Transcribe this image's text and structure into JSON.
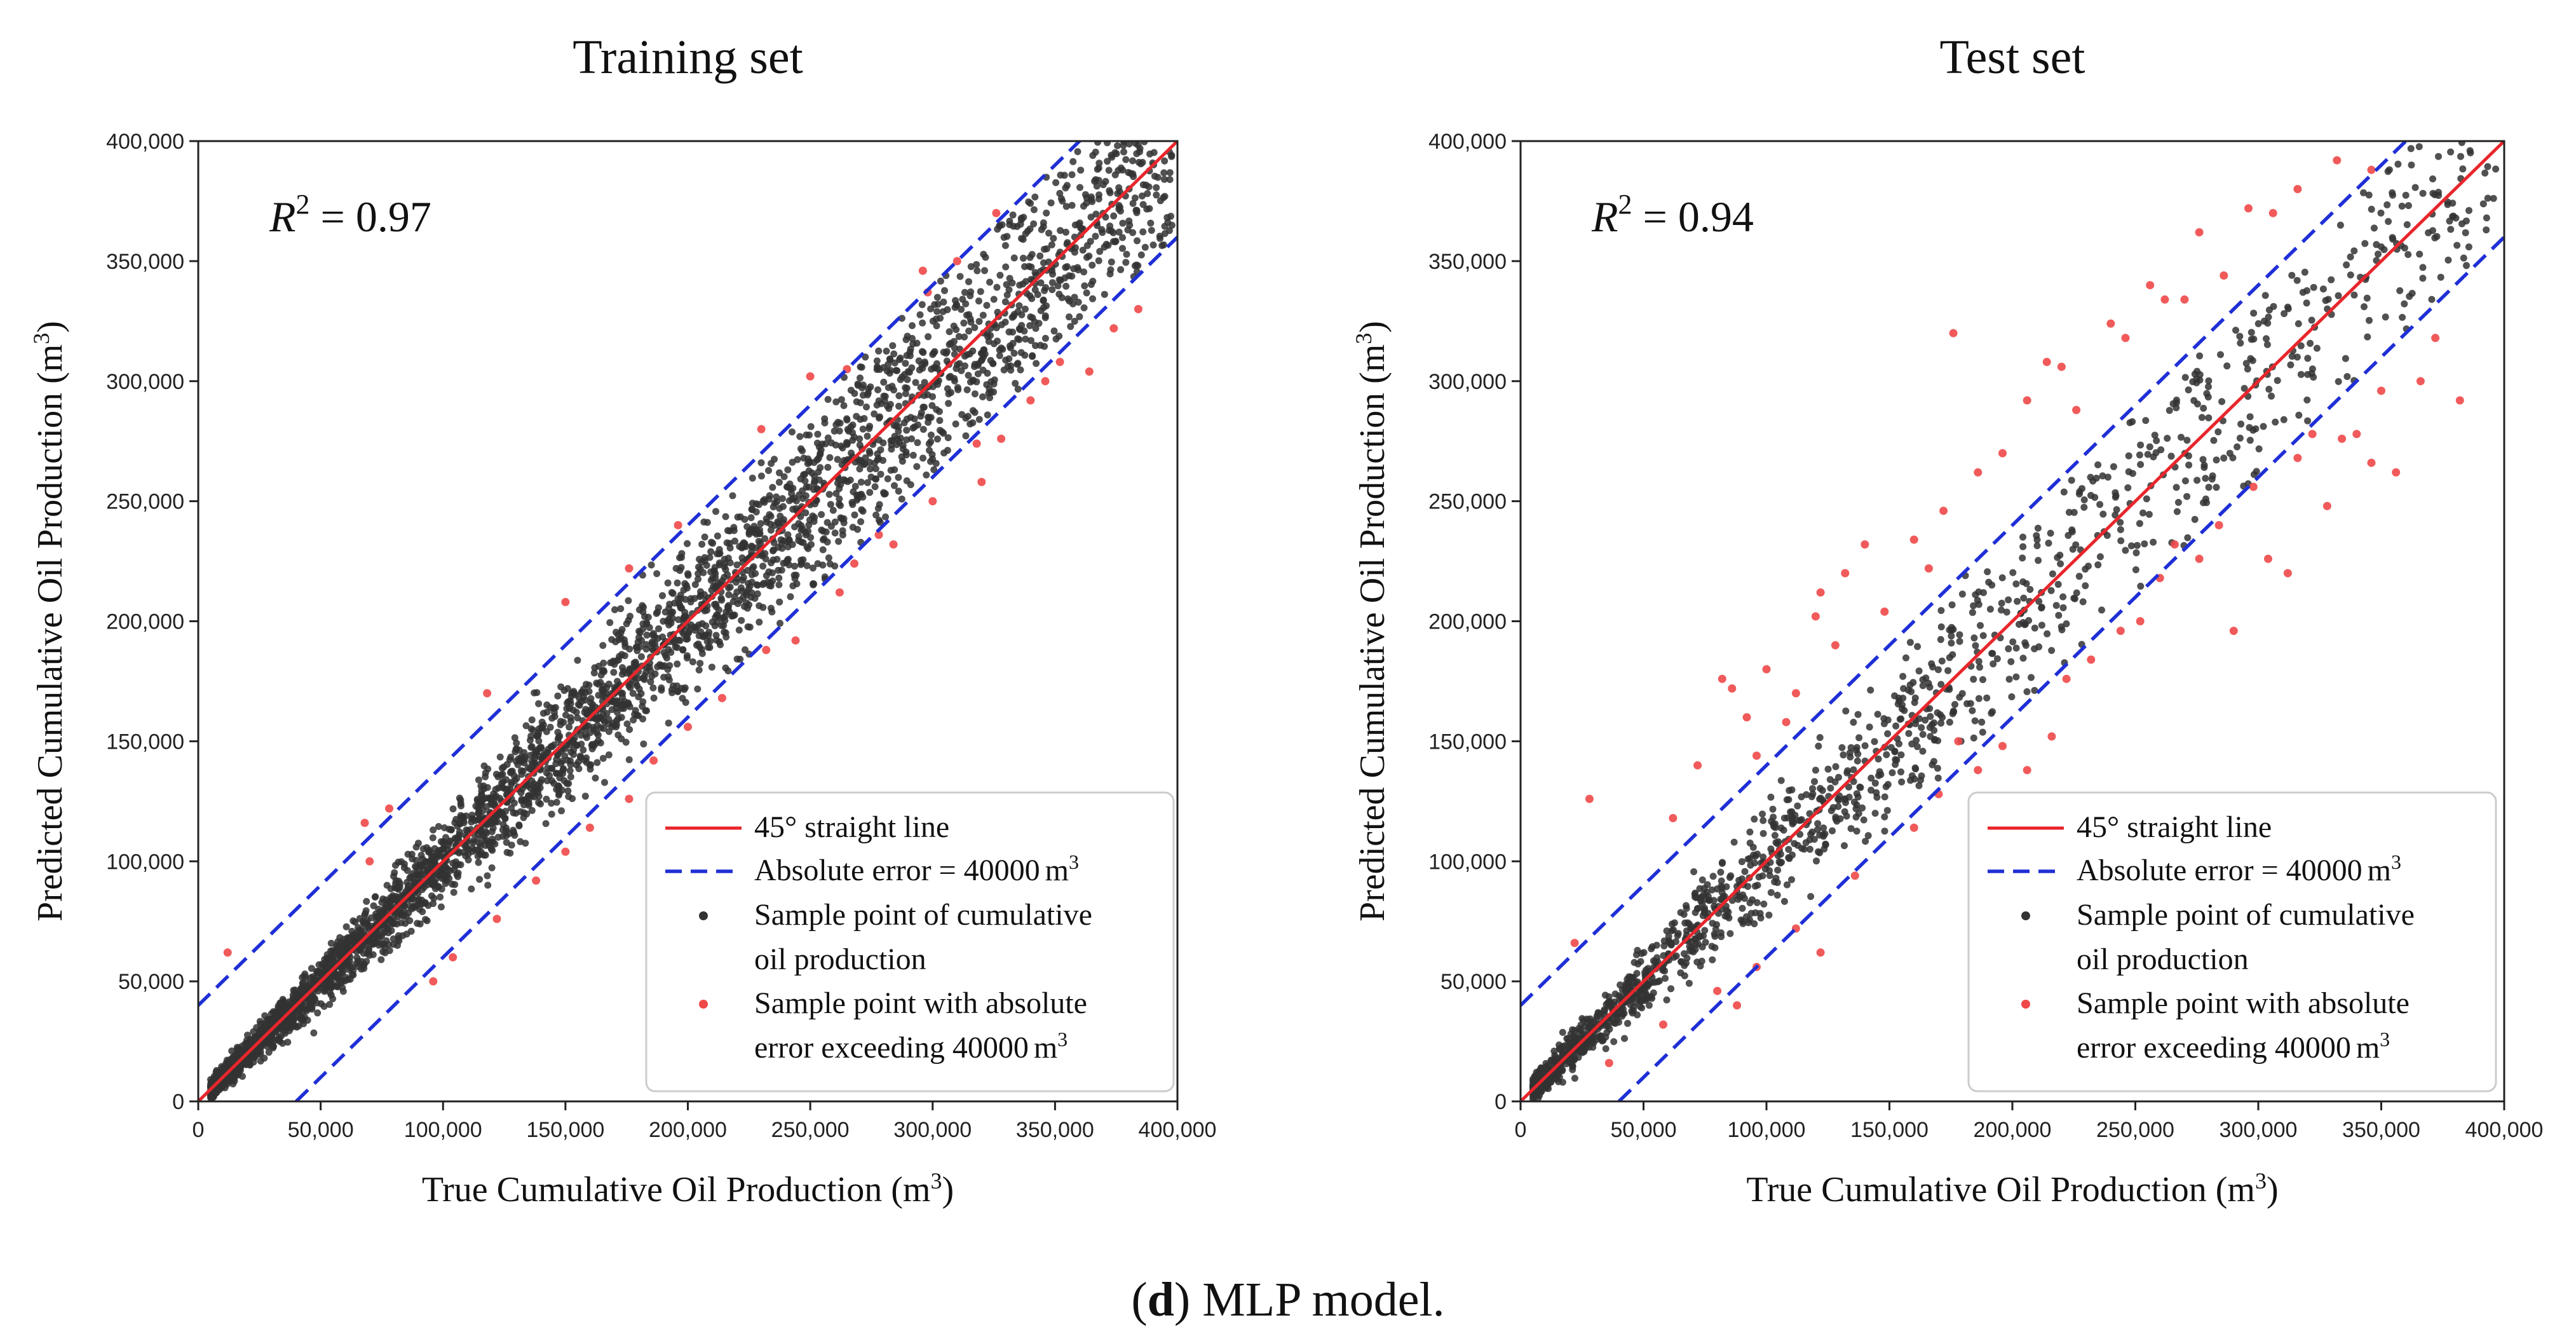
{
  "caption": {
    "letter": "d",
    "open": "(",
    "close": ")",
    "text": " MLP model."
  },
  "chart_data": [
    {
      "type": "scatter",
      "title": "Training set",
      "xlabel": "True Cumulative Oil Production",
      "ylabel": "Predicted Cumulative Oil Production",
      "unit_base": "m",
      "unit_exp": "3",
      "xlim": [
        0,
        400000
      ],
      "ylim": [
        0,
        400000
      ],
      "xticks": [
        "0",
        "50,000",
        "100,000",
        "150,000",
        "200,000",
        "250,000",
        "300,000",
        "350,000",
        "400,000"
      ],
      "yticks": [
        "0",
        "50,000",
        "100,000",
        "150,000",
        "200,000",
        "250,000",
        "300,000",
        "350,000",
        "400,000"
      ],
      "r2_label": "R",
      "r2_exp": "2",
      "r2_text": " = 0.97",
      "r2": 0.97,
      "error_band": 40000,
      "legend": [
        {
          "label": "45° straight line",
          "kind": "line",
          "color": "#e8262b"
        },
        {
          "label": "Absolute error = 40000",
          "unit_base": "m",
          "unit_exp": "3",
          "kind": "dash",
          "color": "#1f2fd6"
        },
        {
          "label": "Sample point of cumulative",
          "label2": "oil production",
          "kind": "dot",
          "color": "#333333"
        },
        {
          "label": "Sample point with absolute",
          "label2": "error exceeding  40000",
          "unit_base": "m",
          "unit_exp": "3",
          "kind": "dot",
          "color": "#f04848"
        }
      ],
      "series_black_count": 3600,
      "series_red_points": [
        [
          12000,
          62000
        ],
        [
          68000,
          116000
        ],
        [
          70000,
          100000
        ],
        [
          78000,
          122000
        ],
        [
          118000,
          170000
        ],
        [
          150000,
          208000
        ],
        [
          176000,
          222000
        ],
        [
          196000,
          240000
        ],
        [
          230000,
          280000
        ],
        [
          250000,
          302000
        ],
        [
          265000,
          305000
        ],
        [
          296000,
          346000
        ],
        [
          298000,
          337000
        ],
        [
          310000,
          350000
        ],
        [
          326000,
          370000
        ],
        [
          360000,
          402000
        ],
        [
          96000,
          50000
        ],
        [
          104000,
          60000
        ],
        [
          122000,
          76000
        ],
        [
          138000,
          92000
        ],
        [
          150000,
          104000
        ],
        [
          160000,
          114000
        ],
        [
          176000,
          126000
        ],
        [
          186000,
          142000
        ],
        [
          200000,
          156000
        ],
        [
          214000,
          168000
        ],
        [
          232000,
          188000
        ],
        [
          244000,
          192000
        ],
        [
          262000,
          212000
        ],
        [
          268000,
          224000
        ],
        [
          278000,
          236000
        ],
        [
          284000,
          232000
        ],
        [
          300000,
          250000
        ],
        [
          318000,
          274000
        ],
        [
          320000,
          258000
        ],
        [
          328000,
          276000
        ],
        [
          340000,
          292000
        ],
        [
          346000,
          300000
        ],
        [
          352000,
          308000
        ],
        [
          364000,
          304000
        ],
        [
          374000,
          322000
        ],
        [
          384000,
          330000
        ]
      ]
    },
    {
      "type": "scatter",
      "title": "Test set",
      "xlabel": "True Cumulative Oil Production",
      "ylabel": "Predicted Cumulative Oil Production",
      "unit_base": "m",
      "unit_exp": "3",
      "xlim": [
        0,
        400000
      ],
      "ylim": [
        0,
        400000
      ],
      "xticks": [
        "0",
        "50,000",
        "100,000",
        "150,000",
        "200,000",
        "250,000",
        "300,000",
        "350,000",
        "400,000"
      ],
      "yticks": [
        "0",
        "50,000",
        "100,000",
        "150,000",
        "200,000",
        "250,000",
        "300,000",
        "350,000",
        "400,000"
      ],
      "r2_label": "R",
      "r2_exp": "2",
      "r2_text": " = 0.94",
      "r2": 0.94,
      "error_band": 40000,
      "legend": [
        {
          "label": "45° straight line",
          "kind": "line",
          "color": "#e8262b"
        },
        {
          "label": "Absolute error = 40000",
          "unit_base": "m",
          "unit_exp": "3",
          "kind": "dash",
          "color": "#1f2fd6"
        },
        {
          "label": "Sample point of cumulative",
          "label2": "oil production",
          "kind": "dot",
          "color": "#333333"
        },
        {
          "label": "Sample point with absolute",
          "label2": "error exceeding  40000",
          "unit_base": "m",
          "unit_exp": "3",
          "kind": "dot",
          "color": "#f04848"
        }
      ],
      "series_black_count": 1500,
      "series_red_points": [
        [
          22000,
          66000
        ],
        [
          28000,
          126000
        ],
        [
          62000,
          118000
        ],
        [
          72000,
          140000
        ],
        [
          82000,
          176000
        ],
        [
          86000,
          172000
        ],
        [
          92000,
          160000
        ],
        [
          96000,
          144000
        ],
        [
          100000,
          180000
        ],
        [
          108000,
          158000
        ],
        [
          112000,
          170000
        ],
        [
          120000,
          202000
        ],
        [
          122000,
          212000
        ],
        [
          128000,
          190000
        ],
        [
          132000,
          220000
        ],
        [
          140000,
          232000
        ],
        [
          148000,
          204000
        ],
        [
          160000,
          234000
        ],
        [
          166000,
          222000
        ],
        [
          172000,
          246000
        ],
        [
          176000,
          320000
        ],
        [
          186000,
          262000
        ],
        [
          196000,
          270000
        ],
        [
          206000,
          292000
        ],
        [
          214000,
          308000
        ],
        [
          220000,
          306000
        ],
        [
          226000,
          288000
        ],
        [
          240000,
          324000
        ],
        [
          246000,
          318000
        ],
        [
          256000,
          340000
        ],
        [
          262000,
          334000
        ],
        [
          270000,
          334000
        ],
        [
          276000,
          362000
        ],
        [
          286000,
          344000
        ],
        [
          296000,
          372000
        ],
        [
          306000,
          370000
        ],
        [
          316000,
          380000
        ],
        [
          332000,
          392000
        ],
        [
          346000,
          388000
        ],
        [
          36000,
          16000
        ],
        [
          58000,
          32000
        ],
        [
          80000,
          46000
        ],
        [
          88000,
          40000
        ],
        [
          96000,
          56000
        ],
        [
          112000,
          72000
        ],
        [
          122000,
          62000
        ],
        [
          136000,
          94000
        ],
        [
          160000,
          114000
        ],
        [
          170000,
          128000
        ],
        [
          178000,
          150000
        ],
        [
          186000,
          138000
        ],
        [
          196000,
          148000
        ],
        [
          206000,
          138000
        ],
        [
          216000,
          152000
        ],
        [
          222000,
          176000
        ],
        [
          232000,
          184000
        ],
        [
          244000,
          196000
        ],
        [
          252000,
          200000
        ],
        [
          260000,
          218000
        ],
        [
          266000,
          232000
        ],
        [
          276000,
          226000
        ],
        [
          284000,
          240000
        ],
        [
          290000,
          196000
        ],
        [
          298000,
          256000
        ],
        [
          304000,
          226000
        ],
        [
          312000,
          220000
        ],
        [
          316000,
          268000
        ],
        [
          322000,
          278000
        ],
        [
          328000,
          248000
        ],
        [
          334000,
          276000
        ],
        [
          340000,
          278000
        ],
        [
          346000,
          266000
        ],
        [
          350000,
          296000
        ],
        [
          356000,
          262000
        ],
        [
          366000,
          300000
        ],
        [
          372000,
          318000
        ],
        [
          382000,
          292000
        ]
      ]
    }
  ]
}
